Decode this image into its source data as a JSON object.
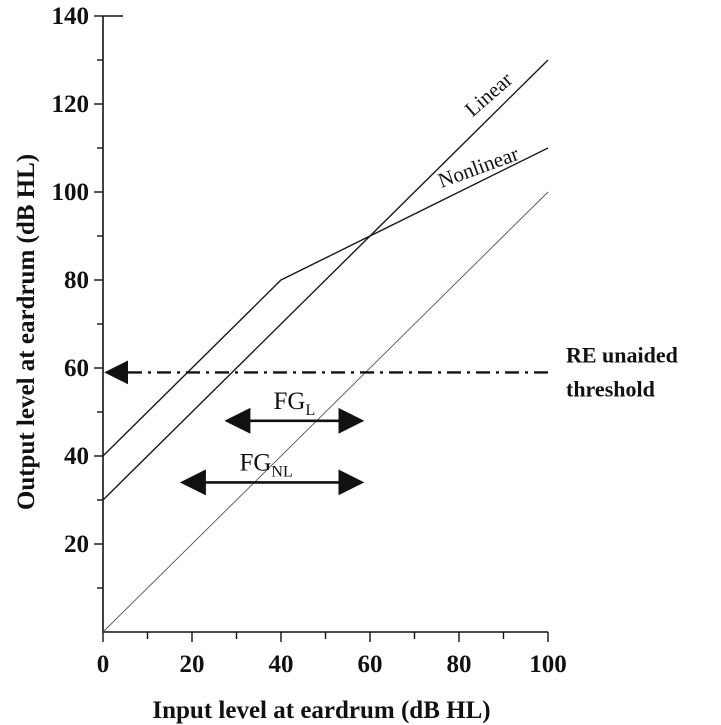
{
  "chart_data": {
    "type": "line",
    "xlabel": "Input level at eardrum (dB HL)",
    "ylabel": "Output level at eardrum (dB HL)",
    "xlim": [
      0,
      100
    ],
    "ylim": [
      0,
      140
    ],
    "x_ticks": [
      0,
      20,
      40,
      60,
      80,
      100
    ],
    "y_ticks": [
      20,
      40,
      60,
      80,
      100,
      120,
      140
    ],
    "grid": false,
    "series": [
      {
        "name": "Linear",
        "x": [
          0,
          100
        ],
        "y": [
          30,
          130
        ],
        "color": "#1a1a1a"
      },
      {
        "name": "Nonlinear",
        "x": [
          0,
          40,
          100
        ],
        "y": [
          40,
          80,
          110
        ],
        "color": "#1a1a1a"
      },
      {
        "x": [
          0,
          100
        ],
        "y": [
          0,
          100
        ],
        "color": "#555555"
      }
    ],
    "threshold": {
      "value": 59,
      "label_line1": "RE unaided",
      "label_line2": "threshold"
    },
    "annotations": [
      {
        "text": "FG",
        "subscript": "L",
        "x_start": 28,
        "x_end": 58,
        "y": 48
      },
      {
        "text": "FG",
        "subscript": "NL",
        "x_start": 18,
        "x_end": 58,
        "y": 34
      }
    ]
  }
}
